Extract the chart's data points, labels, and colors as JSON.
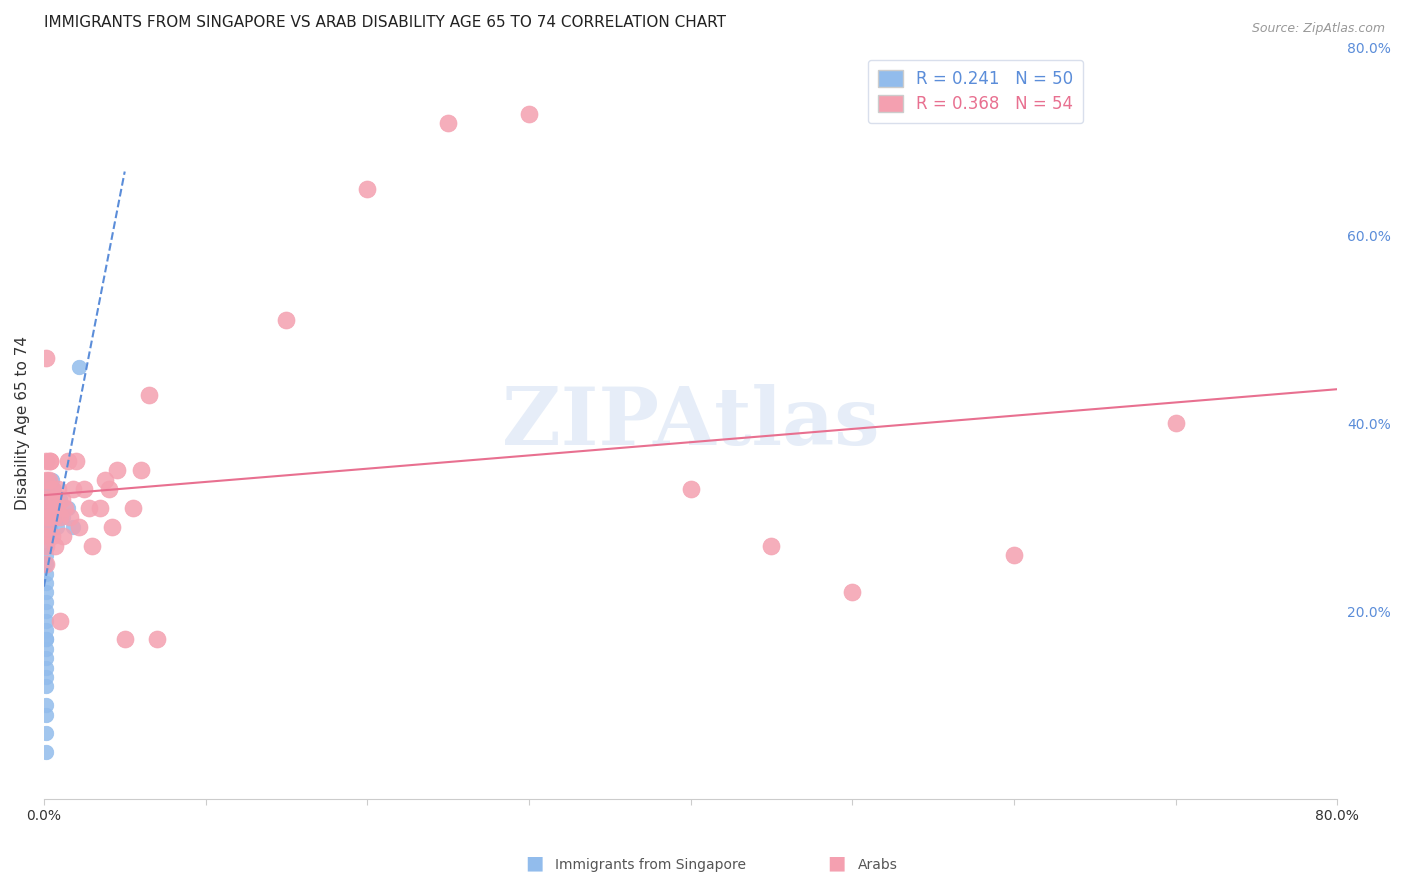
{
  "title": "IMMIGRANTS FROM SINGAPORE VS ARAB DISABILITY AGE 65 TO 74 CORRELATION CHART",
  "source": "Source: ZipAtlas.com",
  "xlabel": "",
  "ylabel": "Disability Age 65 to 74",
  "xlim": [
    0.0,
    0.8
  ],
  "ylim": [
    0.0,
    0.8
  ],
  "xtick_positions": [
    0.0,
    0.1,
    0.2,
    0.3,
    0.4,
    0.5,
    0.6,
    0.7,
    0.8
  ],
  "xtick_labels": [
    "0.0%",
    "",
    "",
    "",
    "",
    "",
    "",
    "",
    "80.0%"
  ],
  "yticks_right": [
    0.2,
    0.4,
    0.6,
    0.8
  ],
  "ytick_labels_right": [
    "20.0%",
    "40.0%",
    "60.0%",
    "80.0%"
  ],
  "series1": {
    "name": "Immigrants from Singapore",
    "color": "#92BCEC",
    "trend_color": "#5B8DD9",
    "R": 0.241,
    "N": 50,
    "x": [
      0.001,
      0.001,
      0.001,
      0.001,
      0.001,
      0.001,
      0.001,
      0.001,
      0.001,
      0.001,
      0.001,
      0.001,
      0.001,
      0.001,
      0.001,
      0.001,
      0.001,
      0.001,
      0.001,
      0.001,
      0.001,
      0.001,
      0.001,
      0.001,
      0.001,
      0.001,
      0.001,
      0.001,
      0.001,
      0.001,
      0.002,
      0.002,
      0.002,
      0.002,
      0.002,
      0.003,
      0.003,
      0.003,
      0.004,
      0.004,
      0.005,
      0.005,
      0.006,
      0.007,
      0.008,
      0.01,
      0.012,
      0.015,
      0.018,
      0.022
    ],
    "y": [
      0.05,
      0.07,
      0.09,
      0.1,
      0.12,
      0.13,
      0.14,
      0.15,
      0.16,
      0.17,
      0.17,
      0.18,
      0.19,
      0.2,
      0.21,
      0.22,
      0.23,
      0.24,
      0.25,
      0.26,
      0.27,
      0.28,
      0.28,
      0.29,
      0.3,
      0.3,
      0.31,
      0.31,
      0.32,
      0.33,
      0.29,
      0.31,
      0.33,
      0.34,
      0.36,
      0.3,
      0.32,
      0.34,
      0.29,
      0.32,
      0.31,
      0.34,
      0.33,
      0.3,
      0.29,
      0.32,
      0.3,
      0.31,
      0.29,
      0.46
    ]
  },
  "series2": {
    "name": "Arabs",
    "color": "#F4A0B0",
    "trend_color": "#E87090",
    "R": 0.368,
    "N": 54,
    "x": [
      0.001,
      0.001,
      0.001,
      0.001,
      0.001,
      0.001,
      0.001,
      0.001,
      0.002,
      0.002,
      0.003,
      0.003,
      0.004,
      0.004,
      0.005,
      0.005,
      0.006,
      0.006,
      0.007,
      0.007,
      0.008,
      0.009,
      0.01,
      0.01,
      0.011,
      0.012,
      0.013,
      0.015,
      0.016,
      0.018,
      0.02,
      0.022,
      0.025,
      0.028,
      0.03,
      0.035,
      0.038,
      0.04,
      0.042,
      0.045,
      0.05,
      0.055,
      0.06,
      0.065,
      0.07,
      0.15,
      0.2,
      0.25,
      0.3,
      0.4,
      0.45,
      0.5,
      0.6,
      0.7
    ],
    "y": [
      0.28,
      0.3,
      0.32,
      0.34,
      0.36,
      0.27,
      0.25,
      0.47,
      0.29,
      0.31,
      0.34,
      0.3,
      0.36,
      0.36,
      0.28,
      0.33,
      0.3,
      0.32,
      0.27,
      0.31,
      0.31,
      0.33,
      0.19,
      0.3,
      0.32,
      0.28,
      0.31,
      0.36,
      0.3,
      0.33,
      0.36,
      0.29,
      0.33,
      0.31,
      0.27,
      0.31,
      0.34,
      0.33,
      0.29,
      0.35,
      0.17,
      0.31,
      0.35,
      0.43,
      0.17,
      0.51,
      0.65,
      0.72,
      0.73,
      0.33,
      0.27,
      0.22,
      0.26,
      0.4
    ]
  },
  "legend_R_N_color1": "#5B8DD9",
  "legend_R_N_color2": "#E87090",
  "grid_color": "#D0D8E8",
  "watermark": "ZIPAtlas",
  "background_color": "#FFFFFF",
  "title_fontsize": 11,
  "axis_label_fontsize": 11,
  "tick_fontsize": 10,
  "legend_fontsize": 12,
  "right_tick_color": "#5B8DD9"
}
